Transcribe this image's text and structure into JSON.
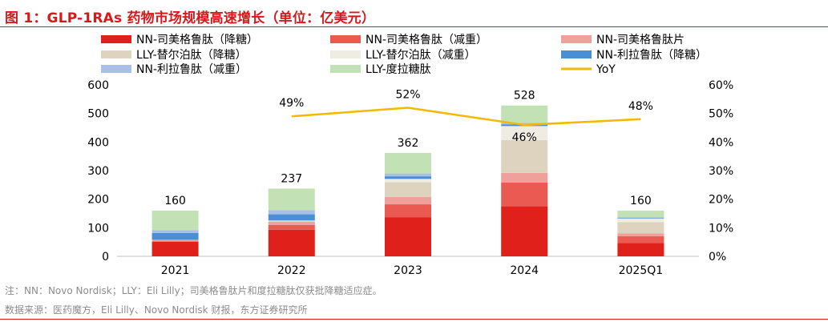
{
  "figure_title": "图 1：GLP-1RAs 药物市场规模高速增长（单位：亿美元）",
  "notes": {
    "note": "注：NN：Novo Nordisk；LLY：Eli Lilly；司美格鲁肽片和度拉糖肽仅获批降糖适应症。",
    "source": "数据来源：医药魔方，Eli Lilly、Novo Nordisk 财报，东方证券研究所"
  },
  "chart_data": {
    "type": "bar",
    "stacked": true,
    "title": "GLP-1RAs 药物市场规模高速增长（单位：亿美元）",
    "categories": [
      "2021",
      "2022",
      "2023",
      "2024",
      "2025Q1"
    ],
    "ylim": [
      0,
      600
    ],
    "y2lim": [
      0,
      0.6
    ],
    "yticks": [
      "0",
      "100",
      "200",
      "300",
      "400",
      "500",
      "600"
    ],
    "y2ticks": [
      "0%",
      "10%",
      "20%",
      "30%",
      "40%",
      "50%",
      "60%"
    ],
    "series": [
      {
        "name": "NN-司美格鲁肽（降糖）",
        "color": "#e0201b",
        "values": [
          51,
          93,
          137,
          175,
          47
        ]
      },
      {
        "name": "NN-司美格鲁肽（减重）",
        "color": "#ea5a53",
        "values": [
          2,
          17,
          45,
          83,
          23
        ]
      },
      {
        "name": "NN-司美格鲁肽片",
        "color": "#f0a09b",
        "values": [
          5,
          11,
          26,
          34,
          10
        ]
      },
      {
        "name": "LLY-替尔泊肽（降糖）",
        "color": "#ddd3bf",
        "values": [
          0,
          5,
          51,
          115,
          40
        ]
      },
      {
        "name": "LLY-替尔泊肽（减重）",
        "color": "#efece3",
        "values": [
          0,
          0,
          12,
          49,
          12
        ]
      },
      {
        "name": "NN-利拉鲁肽（降糖）",
        "color": "#4a8fd4",
        "values": [
          24,
          21,
          9,
          6,
          2
        ]
      },
      {
        "name": "NN-利拉鲁肽（减重）",
        "color": "#a9bfe6",
        "values": [
          10,
          15,
          10,
          5,
          3
        ]
      },
      {
        "name": "LLY-度拉糖肽",
        "color": "#c2e2b6",
        "values": [
          68,
          75,
          72,
          61,
          23
        ]
      }
    ],
    "totals": [
      160,
      237,
      362,
      528,
      160
    ],
    "total_labels": [
      "160",
      "237",
      "362",
      "528",
      "160"
    ],
    "line": {
      "name": "YoY",
      "color": "#f5b800",
      "points": [
        {
          "category": "2022",
          "value": 0.49,
          "label": "49%"
        },
        {
          "category": "2023",
          "value": 0.52,
          "label": "52%"
        },
        {
          "category": "2024",
          "value": 0.46,
          "label": "46%"
        },
        {
          "category": "2025Q1",
          "value": 0.48,
          "label": "48%"
        }
      ]
    },
    "legend_order": [
      0,
      1,
      2,
      3,
      4,
      5,
      6,
      7,
      "line"
    ]
  }
}
